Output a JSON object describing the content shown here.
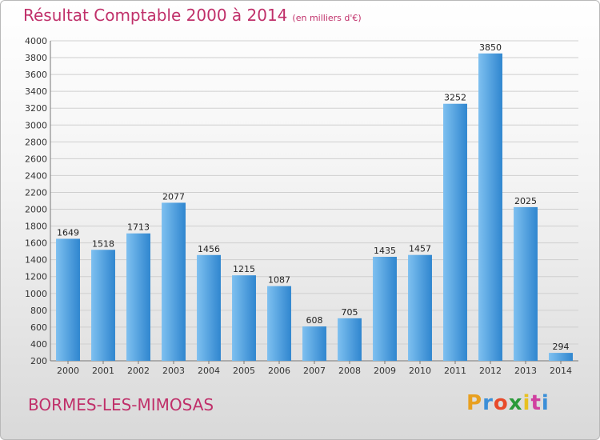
{
  "header": {
    "title": "Résultat Comptable 2000 à 2014",
    "subtitle": "(en milliers d'€)"
  },
  "footer": {
    "place": "BORMES-LES-MIMOSAS",
    "logo_letters": [
      "P",
      "r",
      "o",
      "x",
      "i",
      "t",
      "i"
    ],
    "logo_colors": [
      "#e8a020",
      "#3b8fd8",
      "#e84a2a",
      "#2a9a3a",
      "#e8c020",
      "#d040a0",
      "#3b8fd8"
    ]
  },
  "colors": {
    "bar_light": "#7ec0f0",
    "bar_dark": "#2f86cf",
    "accent": "#c0306a"
  },
  "chart_data": {
    "type": "bar",
    "categories": [
      "2000",
      "2001",
      "2002",
      "2003",
      "2004",
      "2005",
      "2006",
      "2007",
      "2008",
      "2009",
      "2010",
      "2011",
      "2012",
      "2013",
      "2014"
    ],
    "values": [
      1649,
      1518,
      1713,
      2077,
      1456,
      1215,
      1087,
      608,
      705,
      1435,
      1457,
      3252,
      3850,
      2025,
      294
    ],
    "ylim": [
      200,
      4000
    ],
    "yticks": [
      200,
      400,
      600,
      800,
      1000,
      1200,
      1400,
      1600,
      1800,
      2000,
      2200,
      2400,
      2600,
      2800,
      3000,
      3200,
      3400,
      3600,
      3800,
      4000
    ],
    "grid": true
  }
}
